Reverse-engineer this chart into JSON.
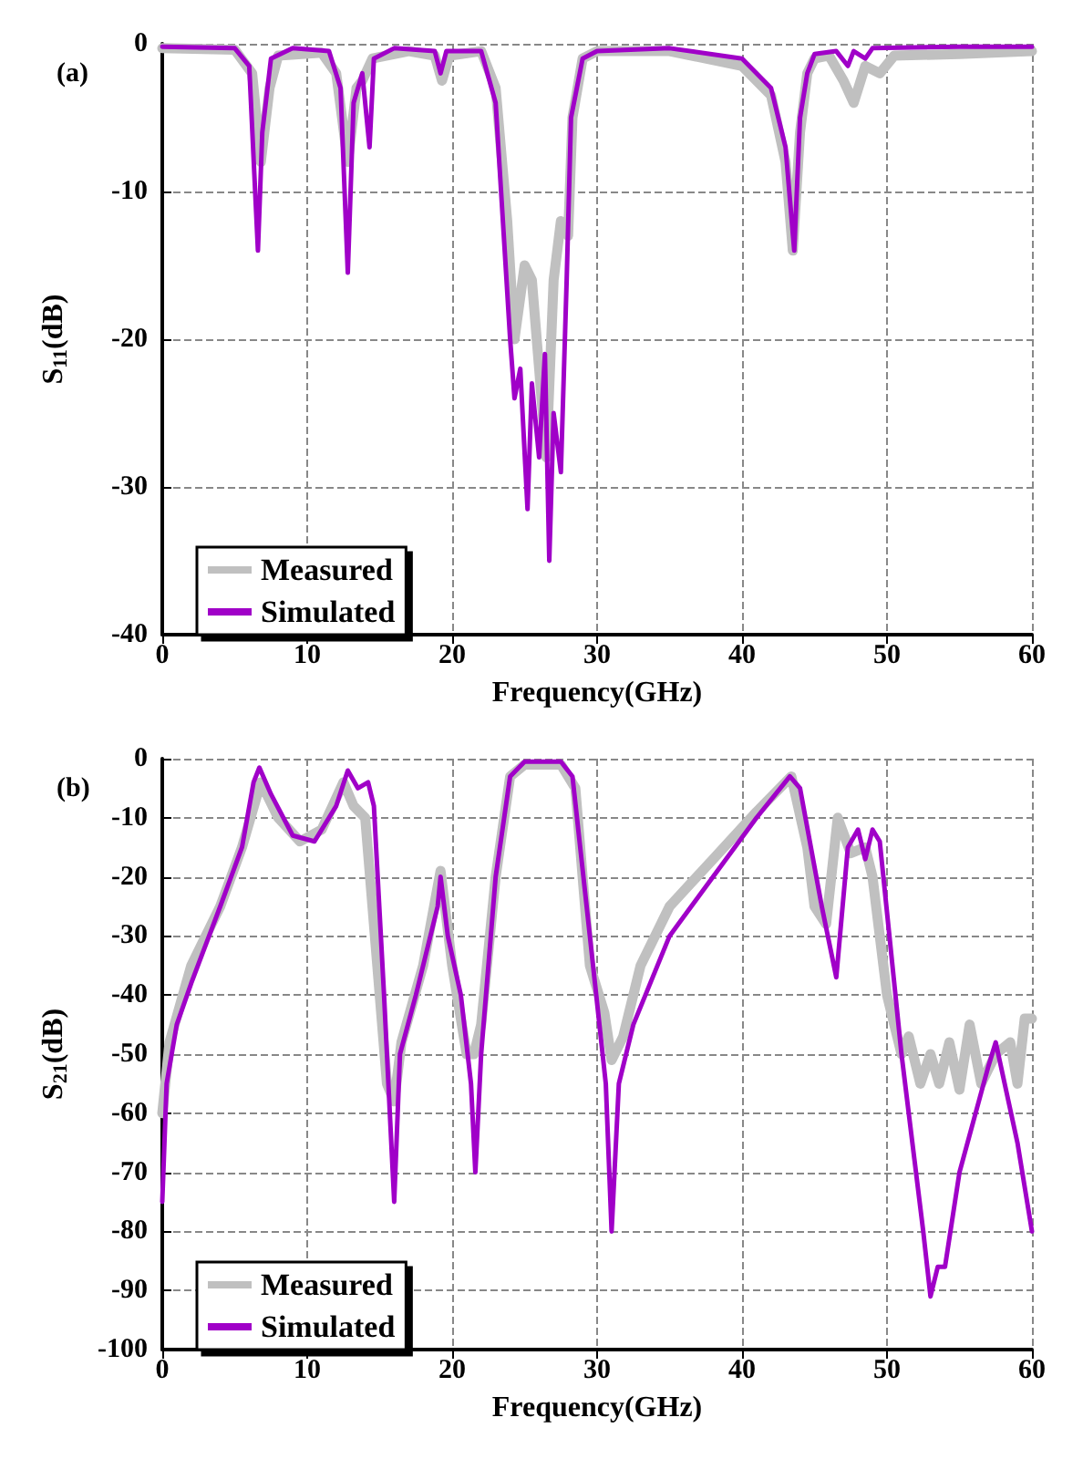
{
  "chart_data": [
    {
      "type": "line",
      "title": "(a)",
      "xlabel": "Frequency(GHz)",
      "ylabel": "S$_{11}$(dB)",
      "xlim": [
        0,
        60
      ],
      "xticks": [
        0,
        10,
        20,
        30,
        40,
        50,
        60
      ],
      "ylim": [
        -40,
        0
      ],
      "yticks": [
        -40,
        -30,
        -20,
        -10,
        0
      ],
      "grid": true,
      "legend": "bottom left",
      "marker": "none",
      "line_style": "solid",
      "series": [
        {
          "name": "Measured",
          "color": "#c0c0c0",
          "x": [
            0,
            5,
            6.2,
            6.8,
            7.4,
            8,
            11,
            12,
            12.8,
            13.4,
            13.8,
            14.5,
            17,
            18.8,
            19.3,
            19.8,
            22,
            23,
            23.8,
            24.3,
            25,
            25.5,
            26,
            26.5,
            27,
            27.5,
            28,
            28.3,
            29,
            30,
            35,
            40,
            42,
            43,
            43.5,
            44,
            44.5,
            45,
            46,
            47,
            47.7,
            48.5,
            49.5,
            50.5,
            55,
            60
          ],
          "values": [
            -0.3,
            -0.4,
            -2,
            -8,
            -3,
            -0.8,
            -0.6,
            -2,
            -8,
            -3,
            -2.5,
            -1,
            -0.5,
            -0.8,
            -2.5,
            -0.8,
            -0.5,
            -3,
            -12,
            -20,
            -15,
            -16,
            -22,
            -28,
            -16,
            -12,
            -13,
            -5,
            -1,
            -0.5,
            -0.5,
            -1.5,
            -3.5,
            -8,
            -14,
            -6,
            -2,
            -1,
            -0.8,
            -2.5,
            -4,
            -1.5,
            -2,
            -0.8,
            -0.7,
            -0.5
          ]
        },
        {
          "name": "Simulated",
          "color": "#a000c8",
          "x": [
            0,
            5,
            6,
            6.6,
            6.9,
            7.5,
            9,
            11.5,
            12.3,
            12.8,
            13.2,
            13.8,
            14.3,
            14.6,
            16,
            18.8,
            19.2,
            19.6,
            22,
            23,
            24,
            24.3,
            24.7,
            25.2,
            25.5,
            26,
            26.4,
            26.7,
            27,
            27.5,
            27.9,
            28.2,
            29,
            30,
            35,
            40,
            42,
            43,
            43.6,
            44,
            44.5,
            45,
            46.5,
            47.3,
            47.7,
            48.5,
            49,
            55,
            60
          ],
          "values": [
            -0.2,
            -0.3,
            -1.5,
            -14,
            -6,
            -1,
            -0.3,
            -0.5,
            -3,
            -15.5,
            -4,
            -2,
            -7,
            -1,
            -0.3,
            -0.5,
            -2,
            -0.5,
            -0.5,
            -4,
            -20,
            -24,
            -22,
            -31.5,
            -23,
            -28,
            -21,
            -35,
            -25,
            -29,
            -16,
            -5,
            -1,
            -0.5,
            -0.3,
            -1,
            -3,
            -7,
            -14,
            -5,
            -2,
            -0.7,
            -0.5,
            -1.5,
            -0.5,
            -1,
            -0.3,
            -0.2,
            -0.2
          ]
        }
      ]
    },
    {
      "type": "line",
      "title": "(b)",
      "xlabel": "Frequency(GHz)",
      "ylabel": "S$_{21}$(dB)",
      "xlim": [
        0,
        60
      ],
      "xticks": [
        0,
        10,
        20,
        30,
        40,
        50,
        60
      ],
      "ylim": [
        -100,
        0
      ],
      "yticks": [
        -100,
        -90,
        -80,
        -70,
        -60,
        -50,
        -40,
        -30,
        -20,
        -10,
        0
      ],
      "grid": true,
      "legend": "bottom left",
      "marker": "none",
      "line_style": "solid",
      "series": [
        {
          "name": "Measured",
          "color": "#c0c0c0",
          "x": [
            0,
            0.5,
            2,
            4,
            5.5,
            6.8,
            8,
            9.5,
            11,
            12.5,
            13.2,
            14,
            15.5,
            16,
            16.5,
            18,
            19.2,
            20,
            21,
            21.5,
            22,
            23,
            24,
            25,
            27.5,
            28.5,
            29.5,
            30.5,
            31,
            31.8,
            33,
            35,
            38,
            41,
            43.4,
            44.5,
            45,
            45.8,
            46.6,
            47.5,
            48.5,
            49,
            50,
            51,
            51.5,
            52.3,
            53,
            53.6,
            54.3,
            55,
            55.7,
            56.5,
            57.5,
            58.5,
            59,
            59.5,
            60
          ],
          "values": [
            -60,
            -48,
            -35,
            -25,
            -15,
            -4,
            -10,
            -14,
            -12,
            -4,
            -8,
            -10,
            -55,
            -58,
            -48,
            -35,
            -19,
            -35,
            -50,
            -50,
            -45,
            -20,
            -3,
            -1,
            -1,
            -5,
            -35,
            -43,
            -51,
            -47,
            -35,
            -25,
            -17,
            -9,
            -3,
            -15,
            -25,
            -28,
            -10,
            -16,
            -15,
            -20,
            -40,
            -50,
            -47,
            -55,
            -50,
            -55,
            -48,
            -56,
            -45,
            -55,
            -50,
            -48,
            -55,
            -44,
            -44
          ]
        },
        {
          "name": "Simulated",
          "color": "#a000c8",
          "x": [
            0,
            0.3,
            1,
            2,
            4,
            5.5,
            6.3,
            6.7,
            7.5,
            9,
            10.5,
            12,
            12.8,
            13.5,
            14.2,
            14.6,
            15.3,
            15.7,
            16,
            16.4,
            17.5,
            19,
            19.2,
            19.7,
            20.6,
            21.3,
            21.6,
            22,
            23,
            24,
            25,
            27.5,
            28.3,
            29.5,
            30.6,
            31,
            31.5,
            32.5,
            35,
            38,
            41,
            43.3,
            44,
            45.5,
            46.5,
            47.3,
            48,
            48.5,
            49,
            49.5,
            51,
            52.5,
            53,
            53.5,
            54,
            55,
            57,
            57.5,
            59,
            60
          ],
          "values": [
            -75,
            -55,
            -45,
            -38,
            -25,
            -15,
            -4,
            -1.5,
            -6,
            -13,
            -14,
            -8,
            -2,
            -5,
            -4,
            -8,
            -40,
            -60,
            -75,
            -50,
            -40,
            -25,
            -20,
            -30,
            -40,
            -55,
            -70,
            -50,
            -20,
            -3,
            -0.5,
            -0.5,
            -3,
            -30,
            -55,
            -80,
            -55,
            -45,
            -30,
            -20,
            -10,
            -3,
            -5,
            -25,
            -37,
            -15,
            -12,
            -17,
            -12,
            -14,
            -50,
            -80,
            -91,
            -86,
            -86,
            -70,
            -52,
            -48,
            -65,
            -80
          ]
        }
      ]
    }
  ]
}
